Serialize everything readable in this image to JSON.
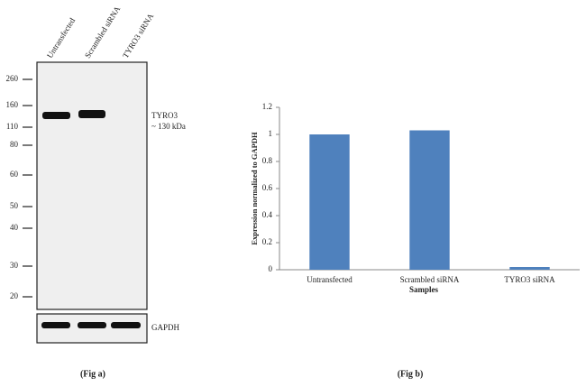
{
  "blot": {
    "lanes": [
      "Untransfected",
      "Scrambled siRNA",
      "TYRO3 siRNA"
    ],
    "markers": [
      260,
      160,
      110,
      80,
      60,
      50,
      40,
      30,
      20
    ],
    "band_label": "TYRO3",
    "band_size": "~ 130 kDa",
    "control_label": "GAPDH",
    "caption": "(Fig a)"
  },
  "chart_data": {
    "type": "bar",
    "caption": "(Fig b)",
    "x_label": "Samples",
    "y_label": "Expression normalized to GAPDH",
    "categories": [
      "Untransfected",
      "Scrambled siRNA",
      "TYRO3 siRNA"
    ],
    "values": [
      1.0,
      1.03,
      0.02
    ],
    "color": "#4f81bd",
    "ylim": [
      0,
      1.2
    ],
    "yticks": [
      0,
      0.2,
      0.4,
      0.6,
      0.8,
      1,
      1.2
    ],
    "grid": false
  }
}
